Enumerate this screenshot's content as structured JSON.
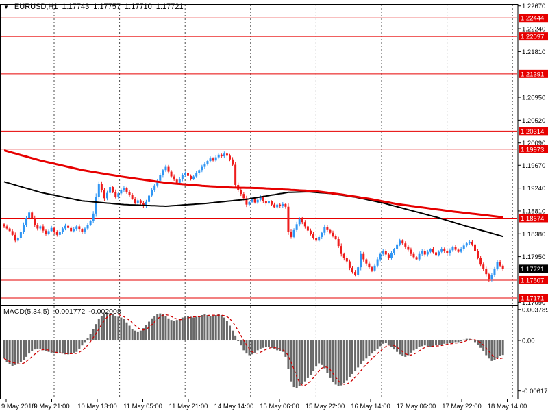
{
  "header": {
    "dropdown_icon": "▼",
    "symbol_period": "EURUSD,H1",
    "open": "1.17743",
    "high": "1.17757",
    "low": "1.17710",
    "close": "1.17721"
  },
  "macd_header": {
    "label": "MACD(5,34,5)",
    "value": "-0.001772",
    "signal_value": "-0.002008"
  },
  "colors": {
    "bull_candle": "#2f95f3",
    "bear_candle": "#ee1c1c",
    "level_red": "#e60000",
    "fast_ma": "#e60000",
    "slow_ma": "#000000",
    "bid_line": "#b4b4b4",
    "bid_box": "#000000",
    "level_box_text": "#ffffff",
    "macd_hist": "#696969",
    "macd_signal": "#cc0000",
    "separator": "#4a4a4a",
    "frame": "#000000",
    "axis_text": "#000000"
  },
  "price_axis": {
    "tick_labels": [
      "1.22670",
      "1.22240",
      "1.21810",
      "1.20950",
      "1.20520",
      "1.20090",
      "1.19670",
      "1.19240",
      "1.18810",
      "1.18380",
      "1.17950",
      "1.17090"
    ],
    "level_labels": [
      "1.22444",
      "1.22097",
      "1.21391",
      "1.20314",
      "1.19973",
      "1.18674",
      "1.17507",
      "1.17171"
    ],
    "bid_label": "1.17721"
  },
  "macd_axis": {
    "tick_labels": [
      "0.003789",
      "0.00",
      "-0.006171"
    ]
  },
  "time_axis": {
    "labels": [
      "9 May 2018",
      "9 May 21:00",
      "10 May 13:00",
      "11 May 05:00",
      "11 May 21:00",
      "14 May 14:00",
      "15 May 06:00",
      "15 May 22:00",
      "16 May 14:00",
      "17 May 06:00",
      "17 May 22:00",
      "18 May 14:00"
    ]
  },
  "chart_data": {
    "type": "candlestick",
    "title": "EURUSD,H1",
    "symbol": "EURUSD",
    "timeframe": "H1",
    "current_ohlc": {
      "open": 1.17743,
      "high": 1.17757,
      "low": 1.1771,
      "close": 1.17721
    },
    "ylim": [
      1.17042,
      1.22705
    ],
    "bid_price": 1.17721,
    "support_resistance_levels": [
      1.22444,
      1.22097,
      1.21391,
      1.20314,
      1.19973,
      1.18674,
      1.17507,
      1.17171
    ],
    "price_ticks": [
      1.2267,
      1.2224,
      1.2181,
      1.2095,
      1.2052,
      1.2009,
      1.1967,
      1.1924,
      1.1881,
      1.1838,
      1.1795,
      1.1709
    ],
    "closes": [
      1.1852,
      1.1848,
      1.1843,
      1.1836,
      1.1825,
      1.183,
      1.1842,
      1.1855,
      1.1868,
      1.1878,
      1.1868,
      1.1855,
      1.1848,
      1.1852,
      1.1844,
      1.1838,
      1.1843,
      1.1849,
      1.1841,
      1.1836,
      1.1842,
      1.1848,
      1.1853,
      1.1849,
      1.1843,
      1.1847,
      1.1852,
      1.1846,
      1.1842,
      1.1848,
      1.1855,
      1.1862,
      1.1876,
      1.1908,
      1.1932,
      1.192,
      1.1905,
      1.1915,
      1.1926,
      1.1917,
      1.1908,
      1.1914,
      1.192,
      1.1924,
      1.1917,
      1.1911,
      1.1904,
      1.1896,
      1.1901,
      1.1896,
      1.189,
      1.1898,
      1.191,
      1.192,
      1.1929,
      1.1938,
      1.1948,
      1.1958,
      1.1964,
      1.1955,
      1.1946,
      1.194,
      1.1934,
      1.1941,
      1.1948,
      1.1953,
      1.1947,
      1.1941,
      1.1946,
      1.1952,
      1.1958,
      1.1964,
      1.197,
      1.1975,
      1.198,
      1.1976,
      1.1982,
      1.1987,
      1.1984,
      1.1989,
      1.1985,
      1.1978,
      1.1968,
      1.193,
      1.192,
      1.1913,
      1.1905,
      1.1893,
      1.1898,
      1.1903,
      1.1897,
      1.1902,
      1.1907,
      1.19,
      1.1895,
      1.1899,
      1.1893,
      1.1888,
      1.1893,
      1.189,
      1.1894,
      1.1889,
      1.1842,
      1.1832,
      1.1845,
      1.1856,
      1.1866,
      1.186,
      1.1852,
      1.1844,
      1.1838,
      1.183,
      1.1825,
      1.1832,
      1.184,
      1.1851,
      1.1845,
      1.184,
      1.1834,
      1.1828,
      1.1815,
      1.18,
      1.1792,
      1.1786,
      1.1774,
      1.1766,
      1.176,
      1.1775,
      1.18,
      1.179,
      1.1782,
      1.1775,
      1.1769,
      1.1778,
      1.179,
      1.18,
      1.1806,
      1.1799,
      1.1793,
      1.1801,
      1.1809,
      1.1818,
      1.1825,
      1.182,
      1.1814,
      1.1808,
      1.18,
      1.1794,
      1.179,
      1.18,
      1.1806,
      1.1799,
      1.1804,
      1.1809,
      1.1803,
      1.1798,
      1.1804,
      1.181,
      1.1805,
      1.1801,
      1.1807,
      1.1813,
      1.1808,
      1.1804,
      1.181,
      1.1816,
      1.182,
      1.1823,
      1.1818,
      1.1805,
      1.1793,
      1.178,
      1.1772,
      1.1762,
      1.1752,
      1.176,
      1.1772,
      1.1785,
      1.1778,
      1.17721
    ],
    "fast_ma_red": [
      [
        0,
        1.1995
      ],
      [
        13,
        1.1976
      ],
      [
        28,
        1.1958
      ],
      [
        43,
        1.1945
      ],
      [
        58,
        1.1934
      ],
      [
        72,
        1.1928
      ],
      [
        82,
        1.1925
      ],
      [
        92,
        1.1924
      ],
      [
        102,
        1.1921
      ],
      [
        112,
        1.1918
      ],
      [
        121,
        1.1912
      ],
      [
        131,
        1.1904
      ],
      [
        141,
        1.1894
      ],
      [
        151,
        1.1887
      ],
      [
        161,
        1.188
      ],
      [
        171,
        1.1874
      ],
      [
        179,
        1.1869
      ]
    ],
    "slow_ma_black": [
      [
        0,
        1.1936
      ],
      [
        13,
        1.1916
      ],
      [
        28,
        1.19
      ],
      [
        43,
        1.1893
      ],
      [
        58,
        1.189
      ],
      [
        72,
        1.1895
      ],
      [
        87,
        1.1903
      ],
      [
        102,
        1.1916
      ],
      [
        109,
        1.1917
      ],
      [
        117,
        1.1914
      ],
      [
        126,
        1.1907
      ],
      [
        136,
        1.1896
      ],
      [
        146,
        1.1882
      ],
      [
        156,
        1.1868
      ],
      [
        166,
        1.1852
      ],
      [
        173,
        1.1842
      ],
      [
        179,
        1.1833
      ]
    ],
    "macd": {
      "ylim": [
        -0.00712,
        0.00419
      ],
      "ticks": [
        0.003789,
        0.0,
        -0.006171
      ],
      "current_value": -0.001772,
      "current_signal": -0.002008,
      "values": [
        -0.0022,
        -0.0026,
        -0.0029,
        -0.0031,
        -0.003,
        -0.0028,
        -0.0026,
        -0.0024,
        -0.002,
        -0.0016,
        -0.0013,
        -0.0011,
        -0.001,
        -0.001,
        -0.0012,
        -0.0013,
        -0.0014,
        -0.0015,
        -0.0016,
        -0.0016,
        -0.0015,
        -0.0016,
        -0.0017,
        -0.0017,
        -0.0016,
        -0.0015,
        -0.0014,
        -0.001,
        -0.0006,
        -0.0002,
        0.0003,
        0.0008,
        0.0014,
        0.002,
        0.0026,
        0.003,
        0.0033,
        0.0034,
        0.0033,
        0.0032,
        0.003,
        0.0029,
        0.0028,
        0.0026,
        0.0022,
        0.0018,
        0.0014,
        0.0012,
        0.0011,
        0.0012,
        0.0015,
        0.0019,
        0.0023,
        0.0027,
        0.003,
        0.0032,
        0.0033,
        0.0032,
        0.003,
        0.0027,
        0.0025,
        0.0024,
        0.0025,
        0.0026,
        0.0028,
        0.0029,
        0.003,
        0.0029,
        0.0028,
        0.0029,
        0.003,
        0.0031,
        0.0032,
        0.0031,
        0.003,
        0.003,
        0.0031,
        0.0032,
        0.0031,
        0.0028,
        0.0024,
        0.0018,
        0.0012,
        0.0006,
        0.0,
        -0.0006,
        -0.0012,
        -0.0016,
        -0.0018,
        -0.0017,
        -0.0015,
        -0.0012,
        -0.001,
        -0.0009,
        -0.0008,
        -0.0008,
        -0.0009,
        -0.001,
        -0.0012,
        -0.0013,
        -0.0014,
        -0.002,
        -0.0035,
        -0.005,
        -0.0057,
        -0.0058,
        -0.0056,
        -0.0053,
        -0.005,
        -0.0046,
        -0.0042,
        -0.0037,
        -0.0032,
        -0.0028,
        -0.003,
        -0.0034,
        -0.004,
        -0.0046,
        -0.0051,
        -0.0054,
        -0.0056,
        -0.0055,
        -0.0052,
        -0.0049,
        -0.0045,
        -0.0041,
        -0.0037,
        -0.0033,
        -0.0029,
        -0.0025,
        -0.0022,
        -0.0019,
        -0.0016,
        -0.0013,
        -0.001,
        -0.0007,
        -0.0004,
        -0.0003,
        -0.0005,
        -0.0008,
        -0.0011,
        -0.0014,
        -0.0017,
        -0.0019,
        -0.002,
        -0.0018,
        -0.0015,
        -0.0012,
        -0.001,
        -0.0008,
        -0.0007,
        -0.0006,
        -0.0007,
        -0.0008,
        -0.0007,
        -0.0006,
        -0.0005,
        -0.0005,
        -0.0004,
        -0.0004,
        -0.0003,
        -0.0003,
        -0.0002,
        -0.0002,
        -0.0001,
        0.0001,
        0.0002,
        0.0002,
        0.0001,
        -0.0002,
        -0.0005,
        -0.0009,
        -0.0013,
        -0.0018,
        -0.0022,
        -0.0025,
        -0.0024,
        -0.0021,
        -0.0019,
        -0.001772
      ]
    },
    "x_tick_labels": [
      "9 May 2018",
      "9 May 21:00",
      "10 May 13:00",
      "11 May 05:00",
      "11 May 21:00",
      "14 May 14:00",
      "15 May 06:00",
      "15 May 22:00",
      "16 May 14:00",
      "17 May 06:00",
      "17 May 22:00",
      "18 May 14:00"
    ]
  }
}
